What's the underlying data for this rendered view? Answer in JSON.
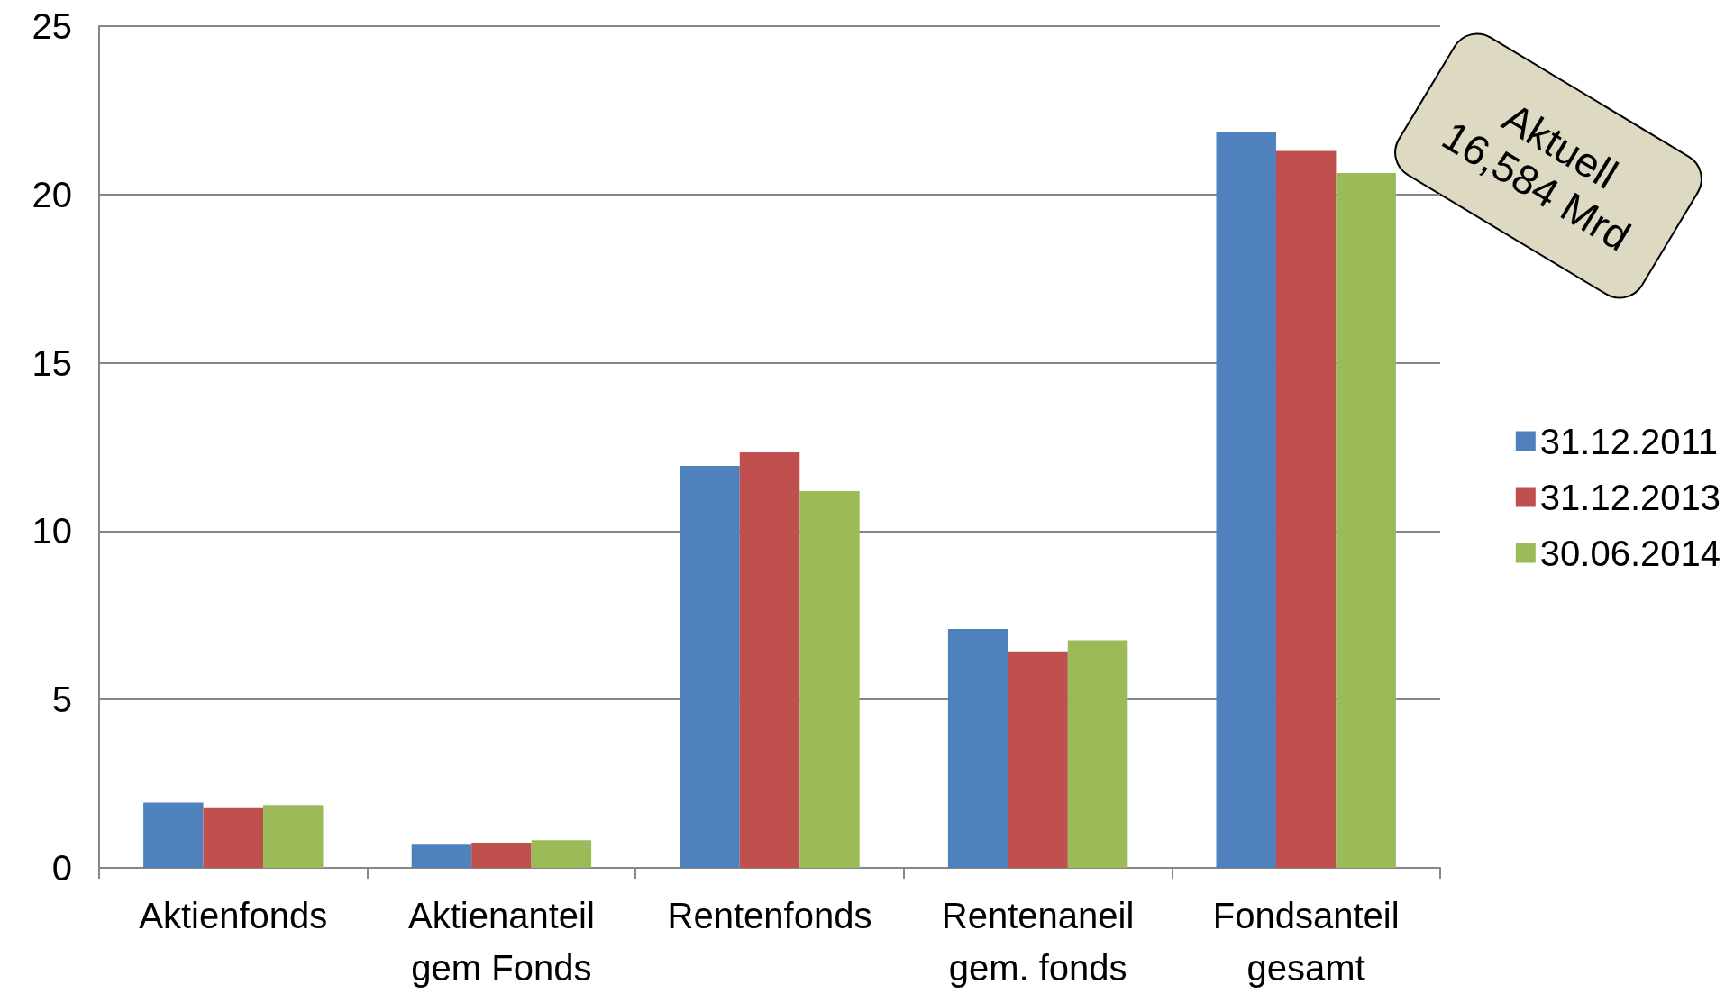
{
  "chart_data": {
    "type": "bar",
    "categories": [
      "Aktienfonds",
      "Aktienanteil\ngem Fonds",
      "Rentenfonds",
      "Rentenaneil\ngem. fonds",
      "Fondsanteil\ngesamt"
    ],
    "series": [
      {
        "name": "31.12.2011",
        "color": "#4f81bd",
        "values": [
          1.94,
          0.69,
          11.94,
          7.09,
          21.85
        ]
      },
      {
        "name": "31.12.2013",
        "color": "#c0504d",
        "values": [
          1.77,
          0.75,
          12.34,
          6.43,
          21.29
        ]
      },
      {
        "name": "30.06.2014",
        "color": "#9bbb59",
        "values": [
          1.87,
          0.82,
          11.19,
          6.76,
          20.64
        ]
      }
    ],
    "ylim": [
      0,
      25
    ],
    "yticks": [
      0,
      5,
      10,
      15,
      20,
      25
    ],
    "grid": "y",
    "legend": "right",
    "annotations": [
      "Aktuell\n16,584 Mrd"
    ]
  }
}
